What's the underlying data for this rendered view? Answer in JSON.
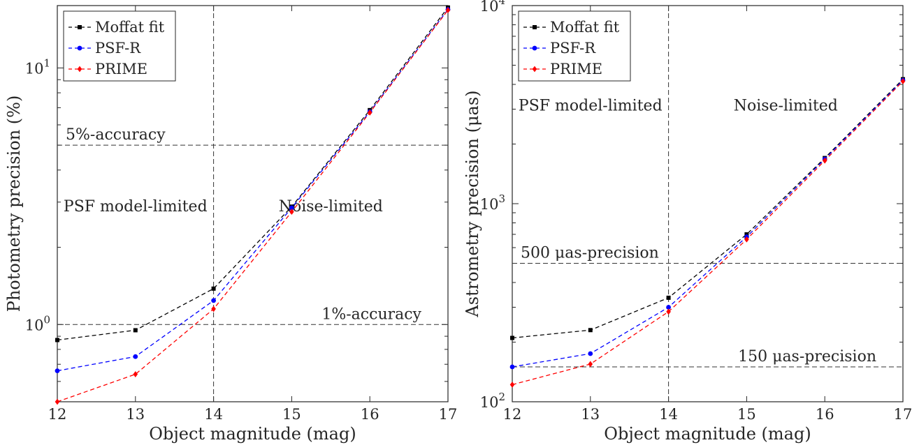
{
  "chart_data": [
    {
      "type": "line",
      "ylog": true,
      "x": [
        12,
        13,
        14,
        15,
        16,
        17
      ],
      "xlim": [
        12,
        17
      ],
      "ylim": [
        0.5,
        17.5
      ],
      "xticks": [
        12,
        13,
        14,
        15,
        16,
        17
      ],
      "yticks": [
        {
          "value": 1,
          "base": "10",
          "exp": "0"
        },
        {
          "value": 10,
          "base": "10",
          "exp": "1"
        }
      ],
      "xlabel": "Object magnitude (mag)",
      "ylabel": "Photometry precision (%)",
      "grid": false,
      "legend": "top-left",
      "series": [
        {
          "name": "Moffat fit",
          "color": "#000000",
          "marker": "square",
          "values": [
            0.87,
            0.95,
            1.38,
            2.88,
            6.85,
            17.2
          ]
        },
        {
          "name": "PSF-R",
          "color": "#0000ff",
          "marker": "circle",
          "values": [
            0.66,
            0.75,
            1.24,
            2.85,
            6.75,
            16.9
          ]
        },
        {
          "name": "PRIME",
          "color": "#ff0000",
          "marker": "diamond",
          "values": [
            0.5,
            0.64,
            1.15,
            2.75,
            6.7,
            16.8
          ]
        }
      ],
      "hlines": [
        {
          "y": 5,
          "label": "5%-accuracy",
          "label_side": "left"
        },
        {
          "y": 1,
          "label": "1%-accuracy",
          "label_side": "right"
        }
      ],
      "vlines": [
        {
          "x": 14
        }
      ],
      "annotations": [
        {
          "text": "PSF model-limited",
          "x": 13,
          "y": 2.9
        },
        {
          "text": "Noise-limited",
          "x": 15.5,
          "y": 2.9
        }
      ]
    },
    {
      "type": "line",
      "ylog": true,
      "x": [
        12,
        13,
        14,
        15,
        16,
        17
      ],
      "xlim": [
        12,
        17
      ],
      "ylim": [
        100,
        10000
      ],
      "xticks": [
        12,
        13,
        14,
        15,
        16,
        17
      ],
      "yticks": [
        {
          "value": 100,
          "base": "10",
          "exp": "2"
        },
        {
          "value": 1000,
          "base": "10",
          "exp": "3"
        },
        {
          "value": 10000,
          "base": "10",
          "exp": "4"
        }
      ],
      "xlabel": "Object magnitude (mag)",
      "ylabel": "Astrometry precision (μas)",
      "grid": false,
      "legend": "top-left",
      "series": [
        {
          "name": "Moffat fit",
          "color": "#000000",
          "marker": "square",
          "values": [
            210,
            230,
            335,
            700,
            1700,
            4250
          ]
        },
        {
          "name": "PSF-R",
          "color": "#0000ff",
          "marker": "circle",
          "values": [
            150,
            175,
            300,
            680,
            1680,
            4200
          ]
        },
        {
          "name": "PRIME",
          "color": "#ff0000",
          "marker": "diamond",
          "values": [
            122,
            155,
            285,
            660,
            1650,
            4150
          ]
        }
      ],
      "hlines": [
        {
          "y": 500,
          "label": "500 μas-precision",
          "label_side": "left"
        },
        {
          "y": 150,
          "label": "150 μas-precision",
          "label_side": "right"
        }
      ],
      "vlines": [
        {
          "x": 14
        }
      ],
      "annotations": [
        {
          "text": "PSF model-limited",
          "x": 13,
          "y": 3150
        },
        {
          "text": "Noise-limited",
          "x": 15.5,
          "y": 3150
        }
      ]
    }
  ]
}
